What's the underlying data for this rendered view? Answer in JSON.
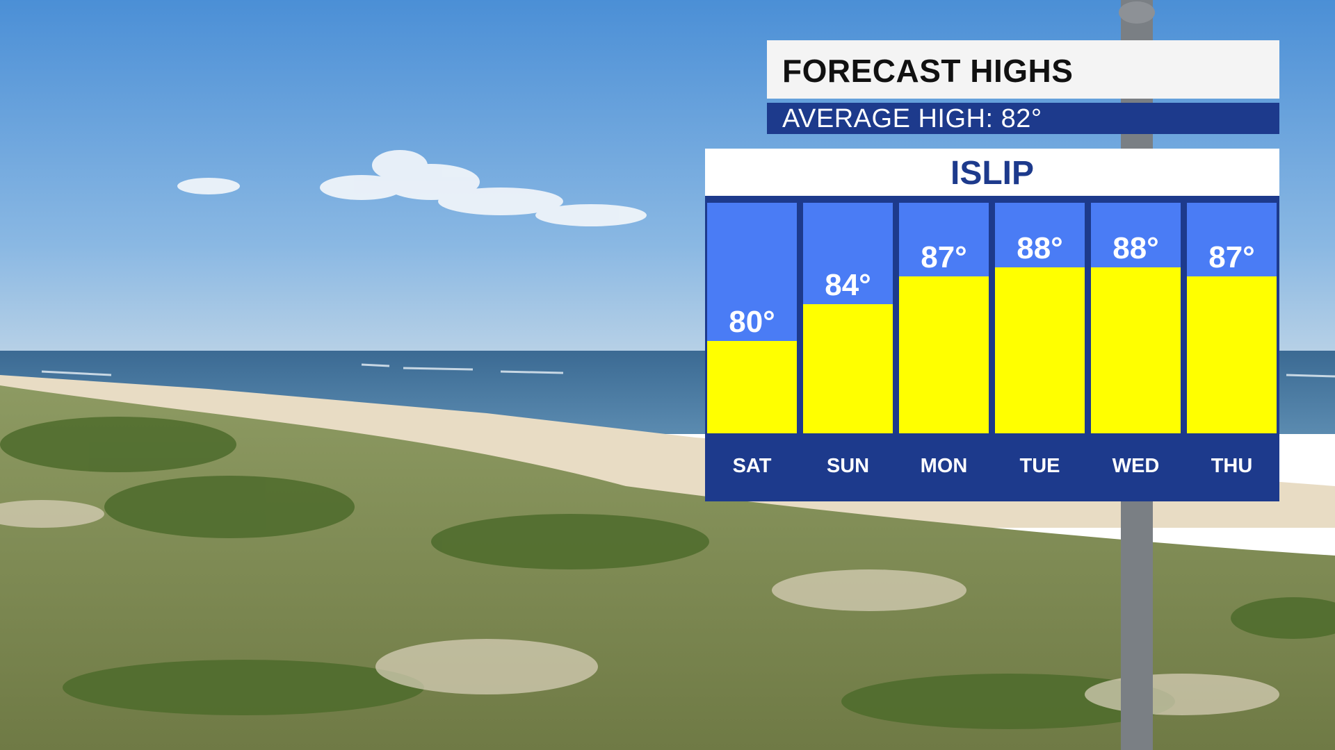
{
  "title": "FORECAST HIGHS",
  "subtitle": "AVERAGE HIGH: 82°",
  "location": "ISLIP",
  "colors": {
    "bar": "#ffff00",
    "column": "#4a7cf5",
    "frame": "#1d3a8c"
  },
  "chart_data": {
    "type": "bar",
    "categories": [
      "SAT",
      "SUN",
      "MON",
      "TUE",
      "WED",
      "THU"
    ],
    "values": [
      80,
      84,
      87,
      88,
      88,
      87
    ],
    "value_labels": [
      "80°",
      "84°",
      "87°",
      "88°",
      "88°",
      "87°"
    ],
    "unit": "°",
    "ylim": [
      70,
      95
    ],
    "grid": false,
    "legend": "none"
  }
}
